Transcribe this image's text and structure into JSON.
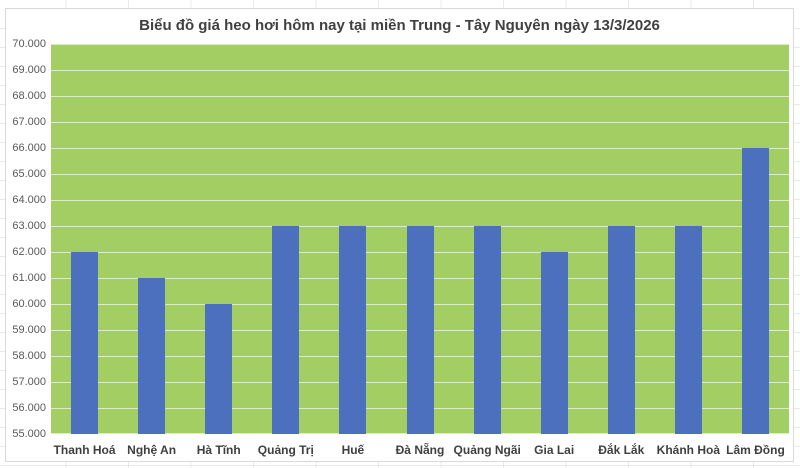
{
  "chart": {
    "title": "Biểu đồ giá heo hơi hôm nay tại miền Trung - Tây Nguyên ngày 13/3/2026",
    "colors": {
      "bar": "#4C70BE",
      "plot_background": "#A2CE63",
      "gridline": "rgba(255,255,255,0.62)",
      "canvas_border": "#D9D9D9",
      "title_text": "#404040",
      "axis_text": "#595959",
      "category_text": "#3F3F3F",
      "sheet_gridline": "#E9E9E9"
    }
  },
  "chart_data": {
    "type": "bar",
    "title": "Biểu đồ giá heo hơi hôm nay tại miền Trung - Tây Nguyên ngày 13/3/2026",
    "categories": [
      "Thanh Hoá",
      "Nghệ An",
      "Hà Tĩnh",
      "Quảng Trị",
      "Huế",
      "Đà Nẵng",
      "Quảng Ngãi",
      "Gia Lai",
      "Đắk Lắk",
      "Khánh Hoà",
      "Lâm Đồng"
    ],
    "values": [
      62000,
      61000,
      60000,
      63000,
      63000,
      63000,
      63000,
      62000,
      63000,
      63000,
      66000
    ],
    "xlabel": "",
    "ylabel": "",
    "ylim": [
      55000,
      70000
    ],
    "ytick_step": 1000,
    "ytick_labels": [
      "55.000",
      "56.000",
      "57.000",
      "58.000",
      "59.000",
      "60.000",
      "61.000",
      "62.000",
      "63.000",
      "64.000",
      "65.000",
      "66.000",
      "67.000",
      "68.000",
      "69.000",
      "70.000"
    ],
    "grid": true,
    "legend_position": "none",
    "bar_color": "#4C70BE",
    "plot_background_color": "#A2CE63"
  }
}
